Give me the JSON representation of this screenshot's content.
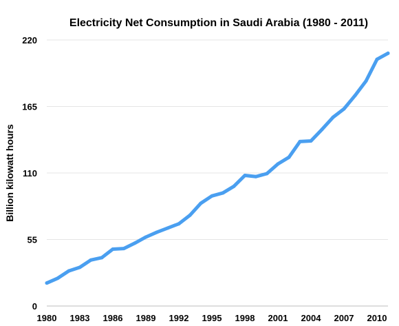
{
  "chart_data": {
    "type": "line",
    "title": "Electricity Net Consumption in Saudi Arabia (1980 - 2011)",
    "xlabel": "",
    "ylabel": "Billion kilowatt hours",
    "ylim": [
      0,
      220
    ],
    "xlim": [
      1980,
      2011
    ],
    "y_ticks": [
      "0",
      "55",
      "110",
      "165",
      "220"
    ],
    "x_ticks": [
      "1980",
      "1983",
      "1986",
      "1989",
      "1992",
      "1995",
      "1998",
      "2001",
      "2004",
      "2007",
      "2010"
    ],
    "grid": true,
    "legend": "none",
    "series": [
      {
        "color": "#4a9ff0",
        "x": [
          1980,
          1981,
          1982,
          1983,
          1984,
          1985,
          1986,
          1987,
          1988,
          1989,
          1990,
          1991,
          1992,
          1993,
          1994,
          1995,
          1996,
          1997,
          1998,
          1999,
          2000,
          2001,
          2002,
          2003,
          2004,
          2005,
          2006,
          2007,
          2008,
          2009,
          2010,
          2011
        ],
        "values": [
          19,
          23,
          29,
          32,
          38,
          40,
          47,
          47.5,
          52,
          57,
          61,
          64.5,
          68,
          75,
          85,
          91,
          93.5,
          99,
          108,
          107,
          109.5,
          117.5,
          123,
          136,
          136.5,
          146,
          156,
          163,
          174,
          186,
          204,
          209
        ]
      }
    ]
  }
}
